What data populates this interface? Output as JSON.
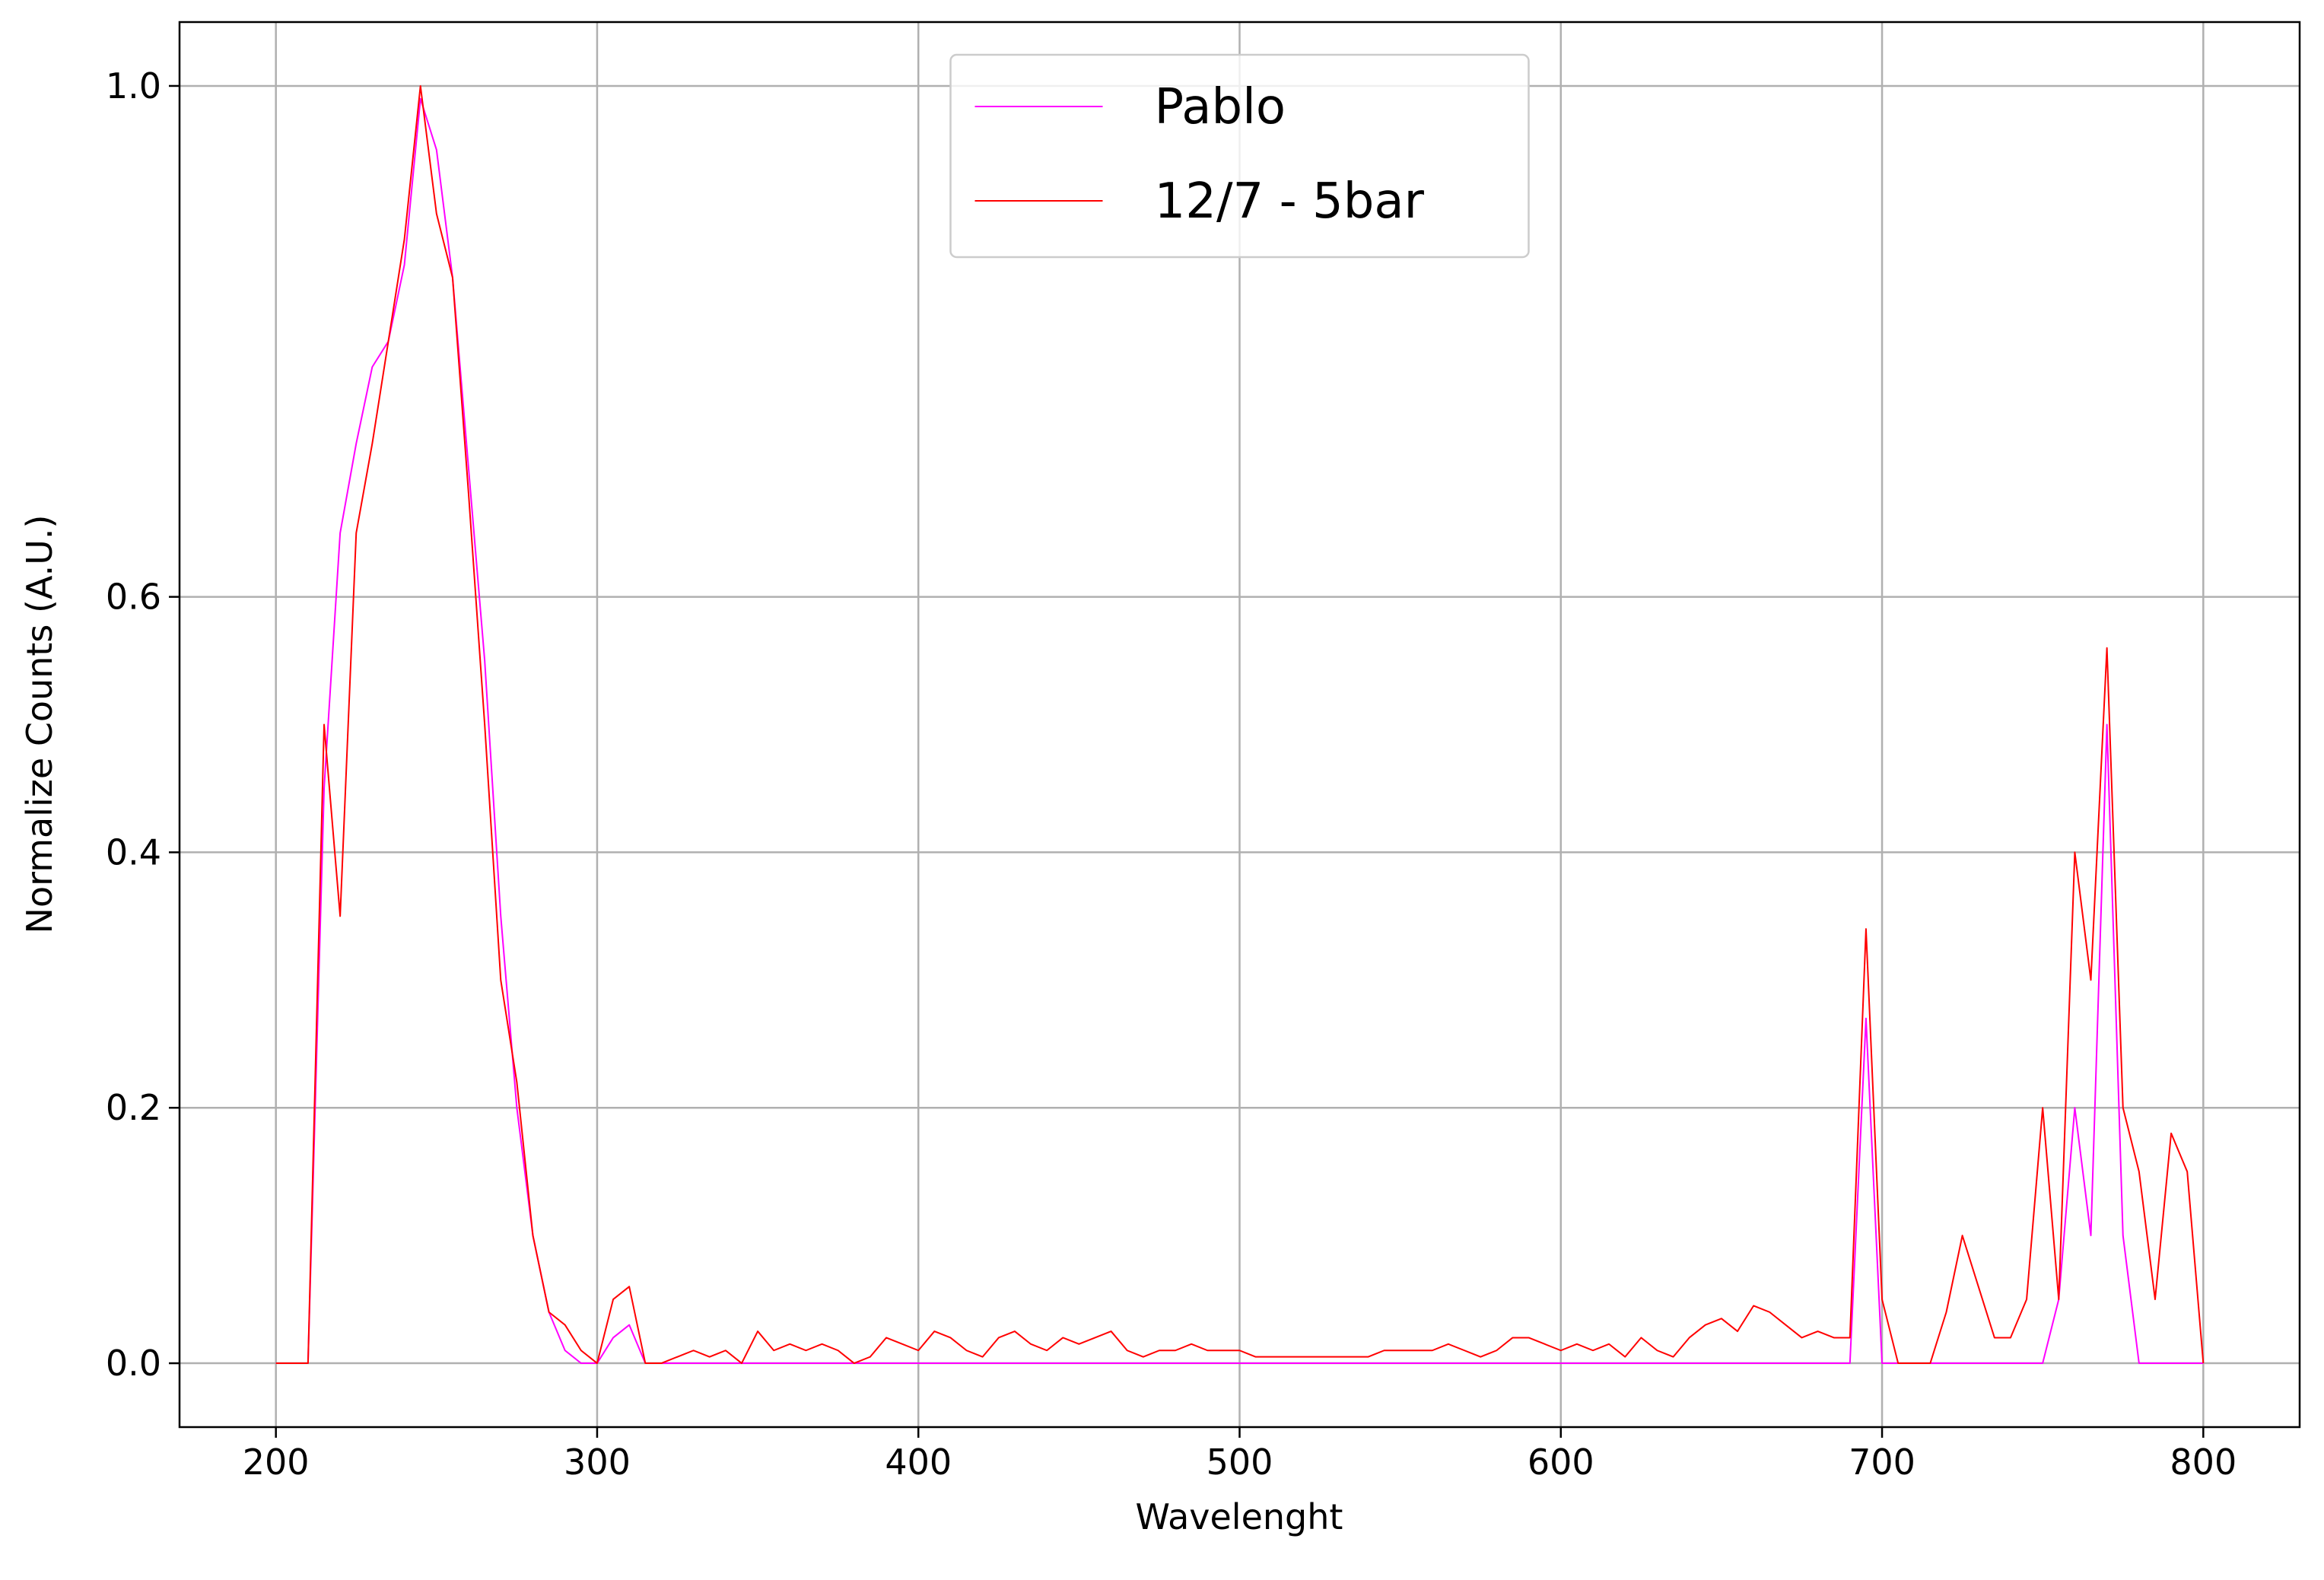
{
  "chart_data": {
    "type": "line",
    "x_label": "Wavelenght",
    "y_label": "Normalize Counts (A.U.)",
    "x": [
      200,
      205,
      210,
      215,
      220,
      225,
      230,
      235,
      240,
      245,
      250,
      255,
      260,
      265,
      270,
      275,
      280,
      285,
      290,
      295,
      300,
      305,
      310,
      315,
      320,
      325,
      330,
      335,
      340,
      345,
      350,
      355,
      360,
      365,
      370,
      375,
      380,
      385,
      390,
      395,
      400,
      405,
      410,
      415,
      420,
      425,
      430,
      435,
      440,
      445,
      450,
      455,
      460,
      465,
      470,
      475,
      480,
      485,
      490,
      495,
      500,
      505,
      510,
      515,
      520,
      525,
      530,
      535,
      540,
      545,
      550,
      555,
      560,
      565,
      570,
      575,
      580,
      585,
      590,
      595,
      600,
      605,
      610,
      615,
      620,
      625,
      630,
      635,
      640,
      645,
      650,
      655,
      660,
      665,
      670,
      675,
      680,
      685,
      690,
      695,
      700,
      705,
      710,
      715,
      720,
      725,
      730,
      735,
      740,
      745,
      750,
      755,
      760,
      765,
      770,
      775,
      780,
      785,
      790,
      795,
      800
    ],
    "series": [
      {
        "name": "Pablo",
        "color": "#ff00ff",
        "values": [
          0,
          0,
          0,
          0.45,
          0.65,
          0.72,
          0.78,
          0.8,
          0.86,
          0.99,
          0.95,
          0.85,
          0.7,
          0.55,
          0.35,
          0.2,
          0.1,
          0.04,
          0.01,
          0,
          0,
          0.02,
          0.03,
          0,
          0,
          0,
          0,
          0,
          0,
          0,
          0,
          0,
          0,
          0,
          0,
          0,
          0,
          0,
          0,
          0,
          0,
          0,
          0,
          0,
          0,
          0,
          0,
          0,
          0,
          0,
          0,
          0,
          0,
          0,
          0,
          0,
          0,
          0,
          0,
          0,
          0,
          0,
          0,
          0,
          0,
          0,
          0,
          0,
          0,
          0,
          0,
          0,
          0,
          0,
          0,
          0,
          0,
          0,
          0,
          0,
          0,
          0,
          0,
          0,
          0,
          0,
          0,
          0,
          0,
          0,
          0,
          0,
          0,
          0,
          0,
          0,
          0,
          0,
          0,
          0.27,
          0,
          0,
          0,
          0,
          0,
          0,
          0,
          0,
          0,
          0,
          0,
          0.05,
          0.2,
          0.1,
          0.5,
          0.1,
          0,
          0,
          0,
          0,
          0
        ]
      },
      {
        "name": "12/7 - 5bar",
        "color": "#ff0000",
        "values": [
          0,
          0,
          0,
          0.5,
          0.35,
          0.65,
          0.72,
          0.8,
          0.88,
          1.0,
          0.9,
          0.85,
          0.68,
          0.5,
          0.3,
          0.22,
          0.1,
          0.04,
          0.03,
          0.01,
          0,
          0.05,
          0.06,
          0,
          0,
          0.005,
          0.01,
          0.005,
          0.01,
          0,
          0.025,
          0.01,
          0.015,
          0.01,
          0.015,
          0.01,
          0,
          0.005,
          0.02,
          0.015,
          0.01,
          0.025,
          0.02,
          0.01,
          0.005,
          0.02,
          0.025,
          0.015,
          0.01,
          0.02,
          0.015,
          0.02,
          0.025,
          0.01,
          0.005,
          0.01,
          0.01,
          0.015,
          0.01,
          0.01,
          0.01,
          0.005,
          0.005,
          0.005,
          0.005,
          0.005,
          0.005,
          0.005,
          0.005,
          0.01,
          0.01,
          0.01,
          0.01,
          0.015,
          0.01,
          0.005,
          0.01,
          0.02,
          0.02,
          0.015,
          0.01,
          0.015,
          0.01,
          0.015,
          0.005,
          0.02,
          0.01,
          0.005,
          0.02,
          0.03,
          0.035,
          0.025,
          0.045,
          0.04,
          0.03,
          0.02,
          0.025,
          0.02,
          0.02,
          0.34,
          0.05,
          0,
          0,
          0,
          0.04,
          0.1,
          0.06,
          0.02,
          0.02,
          0.05,
          0.2,
          0.05,
          0.4,
          0.3,
          0.56,
          0.2,
          0.15,
          0.05,
          0.18,
          0.15,
          0
        ]
      }
    ],
    "xlim": [
      170,
      830
    ],
    "ylim": [
      -0.05,
      1.05
    ],
    "xticks": [
      200,
      300,
      400,
      500,
      600,
      700,
      800
    ],
    "yticks": [
      {
        "value": 0,
        "label": "0.0"
      },
      0.2,
      0.4,
      0.6,
      {
        "value": 1,
        "label": "1.0"
      }
    ],
    "grid": true,
    "legend": "upper center"
  }
}
